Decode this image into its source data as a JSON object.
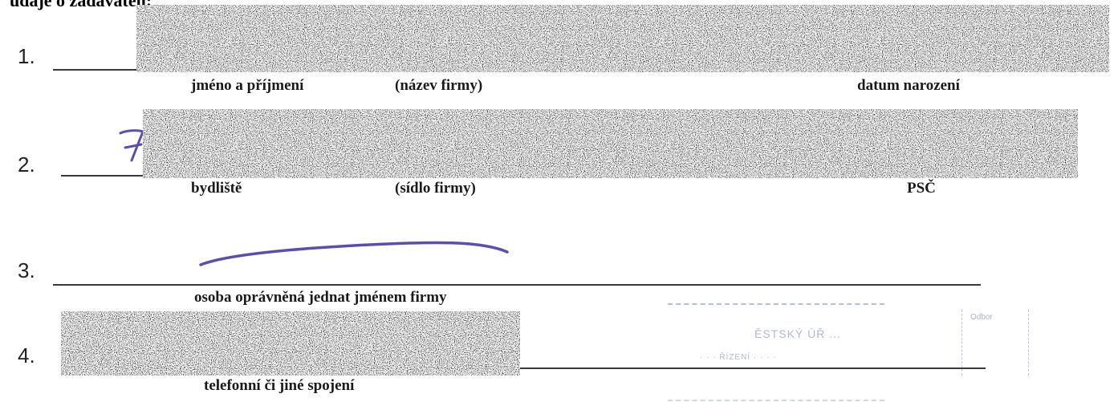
{
  "heading": "údaje o zadavateli:",
  "rows": [
    {
      "number": "1.",
      "captions": [
        "jméno a příjmení",
        "(název  firmy)",
        "datum narození"
      ]
    },
    {
      "number": "2.",
      "captions": [
        "bydliště",
        "(sídlo firmy)",
        "PSČ"
      ]
    },
    {
      "number": "3.",
      "captions": [
        "osoba oprávněná jednat jménem firmy"
      ]
    },
    {
      "number": "4.",
      "captions": [
        "telefonní či jiné spojení"
      ]
    }
  ],
  "handwriting": {
    "digit": "7",
    "ink_color": "#5a4fb0"
  },
  "stamp": {
    "line1": "ĚSTSKÝ ÚŘ ...",
    "line2": "· · ·  ŘÍZENÍ  · · · ·",
    "box_label": "Odbor"
  },
  "colors": {
    "text": "#1a1a1a",
    "redaction": "#9c9c9c",
    "ink": "#5a4fb0"
  }
}
